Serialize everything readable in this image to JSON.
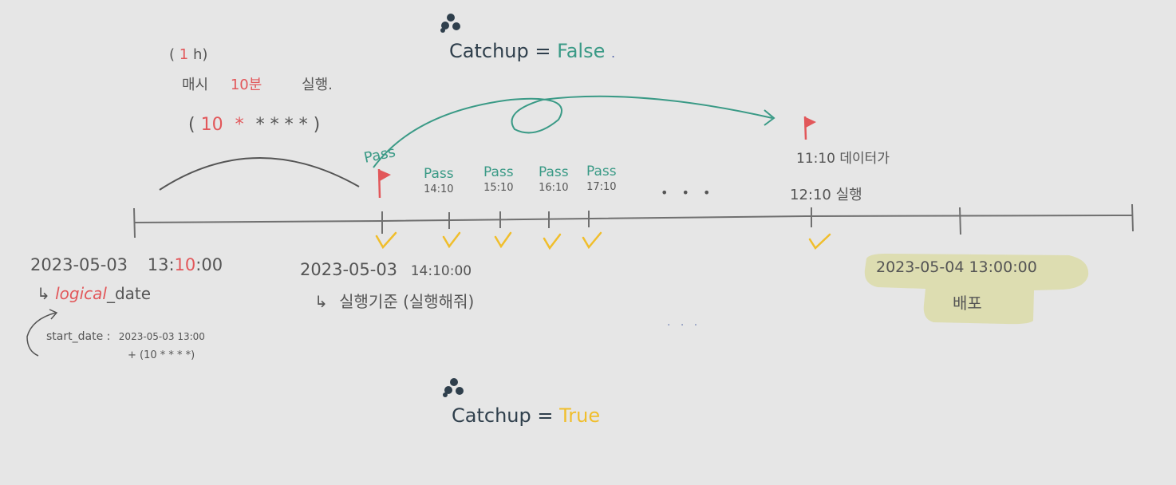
{
  "top_section": {
    "heading_label": "Catchup",
    "heading_eq": "=",
    "heading_value": "False",
    "heading_dot": ".",
    "heading_value_color": "#3a9a86"
  },
  "bottom_section": {
    "heading_label": "Catchup",
    "heading_eq": "=",
    "heading_value": "True",
    "heading_value_color": "#f0be2c"
  },
  "schedule_note": {
    "interval_open": "(",
    "interval_value": "1",
    "interval_unit": "h)",
    "every_hour": "매시",
    "minute": "10분",
    "run": "실행.",
    "cron_open": "(",
    "cron_minute": "10",
    "cron_rest": "*   *   *   *",
    "cron_close": ")"
  },
  "left_tick": {
    "date": "2023-05-03",
    "time_hour": "13",
    "time_colon1": ":",
    "time_minute": "10",
    "time_rest": ":00",
    "arrow": "↳",
    "logical_prefix": "logical",
    "logical_suffix": "_date"
  },
  "start_date_note": {
    "label": "start_date :",
    "value": "2023-05-03   13:00",
    "plus": "+ (10 * * * *)"
  },
  "first_run": {
    "pass_label": "Pass",
    "date": "2023-05-03",
    "time": "14:10:00",
    "arrow": "↳",
    "note": "실행기준 (실행해줘)"
  },
  "passes": [
    {
      "label": "Pass",
      "time": "14:10"
    },
    {
      "label": "Pass",
      "time": "15:10"
    },
    {
      "label": "Pass",
      "time": "16:10"
    },
    {
      "label": "Pass",
      "time": "17:10"
    }
  ],
  "ellipsis": "•   •   •",
  "ellipsis_below": ". . .",
  "later_run": {
    "line1": "11:10 데이터가",
    "line2": "12:10 실행"
  },
  "deploy": {
    "datetime": "2023-05-04  13:00:00",
    "label": "배포"
  },
  "colors": {
    "timeline": "#707070",
    "flag": "#e2575a",
    "check": "#f0be2c",
    "arrow_teal": "#3a9a86",
    "highlight": "#dcdcab"
  },
  "icons": [
    "flower-icon",
    "flag-icon",
    "checkmark-icon",
    "curved-arrow-icon"
  ]
}
